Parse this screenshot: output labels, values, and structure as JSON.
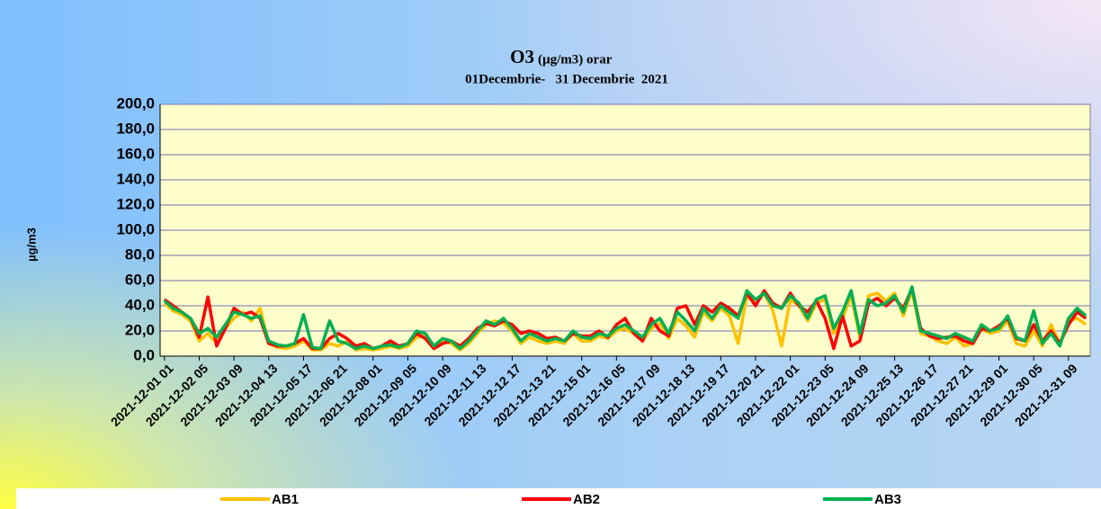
{
  "chart_data": {
    "type": "line",
    "title": "O3",
    "title_unit": "(µg/m3) orar",
    "subtitle": "01Decembrie-   31 Decembrie  2021",
    "y_label": "µg/m3",
    "ylim": [
      0,
      200
    ],
    "yticks": [
      {
        "value": 0,
        "label": "0,0"
      },
      {
        "value": 20,
        "label": "20,0"
      },
      {
        "value": 40,
        "label": "40,0"
      },
      {
        "value": 60,
        "label": "60,0"
      },
      {
        "value": 80,
        "label": "80,0"
      },
      {
        "value": 100,
        "label": "100,0"
      },
      {
        "value": 120,
        "label": "120,0"
      },
      {
        "value": 140,
        "label": "140,0"
      },
      {
        "value": 160,
        "label": "160,0"
      },
      {
        "value": 180,
        "label": "180,0"
      },
      {
        "value": 200,
        "label": "200,0"
      }
    ],
    "grid": true,
    "legend": "bottom",
    "categories": [
      "2021-12-01 01",
      null,
      null,
      null,
      "2021-12-02 05",
      null,
      null,
      null,
      "2021-12-03 09",
      null,
      null,
      null,
      "2021-12-04 13",
      null,
      null,
      null,
      "2021-12-05 17",
      null,
      null,
      null,
      "2021-12-06 21",
      null,
      null,
      null,
      "2021-12-08 01",
      null,
      null,
      null,
      "2021-12-09 05",
      null,
      null,
      null,
      "2021-12-10 09",
      null,
      null,
      null,
      "2021-12-11 13",
      null,
      null,
      null,
      "2021-12-12 17",
      null,
      null,
      null,
      "2021-12-13 21",
      null,
      null,
      null,
      "2021-12-15 01",
      null,
      null,
      null,
      "2021-12-16 05",
      null,
      null,
      null,
      "2021-12-17 09",
      null,
      null,
      null,
      "2021-12-18 13",
      null,
      null,
      null,
      "2021-12-19 17",
      null,
      null,
      null,
      "2021-12-20 21",
      null,
      null,
      null,
      "2021-12-22 01",
      null,
      null,
      null,
      "2021-12-23 05",
      null,
      null,
      null,
      "2021-12-24 09",
      null,
      null,
      null,
      "2021-12-25 13",
      null,
      null,
      null,
      "2021-12-26 17",
      null,
      null,
      null,
      "2021-12-27 21",
      null,
      null,
      null,
      "2021-12-29 01",
      null,
      null,
      null,
      "2021-12-30 05",
      null,
      null,
      null,
      "2021-12-31 09",
      null,
      null
    ],
    "series": [
      {
        "name": "AB1",
        "color": "#ffc000",
        "values": [
          42,
          36,
          33,
          28,
          12,
          18,
          10,
          22,
          30,
          35,
          28,
          38,
          10,
          7,
          6,
          8,
          12,
          5,
          5,
          10,
          8,
          12,
          5,
          6,
          5,
          6,
          8,
          6,
          8,
          15,
          16,
          6,
          12,
          10,
          5,
          10,
          18,
          25,
          28,
          26,
          20,
          10,
          15,
          12,
          10,
          12,
          10,
          18,
          12,
          12,
          16,
          14,
          20,
          22,
          18,
          12,
          22,
          26,
          14,
          30,
          24,
          15,
          35,
          28,
          38,
          32,
          10,
          48,
          42,
          50,
          36,
          8,
          45,
          40,
          28,
          42,
          45,
          18,
          30,
          48,
          15,
          48,
          50,
          44,
          50,
          32,
          52,
          18,
          16,
          12,
          10,
          15,
          8,
          10,
          22,
          18,
          20,
          28,
          10,
          8,
          20,
          8,
          25,
          10,
          28,
          30,
          25
        ]
      },
      {
        "name": "AB2",
        "color": "#ff0000",
        "values": [
          45,
          40,
          35,
          30,
          15,
          47,
          8,
          22,
          38,
          33,
          35,
          30,
          10,
          8,
          8,
          10,
          14,
          6,
          6,
          14,
          18,
          14,
          8,
          10,
          6,
          8,
          12,
          8,
          10,
          18,
          14,
          6,
          10,
          12,
          8,
          14,
          22,
          26,
          24,
          28,
          25,
          18,
          20,
          18,
          14,
          15,
          12,
          18,
          16,
          16,
          20,
          15,
          25,
          30,
          18,
          12,
          30,
          20,
          16,
          38,
          40,
          25,
          40,
          35,
          42,
          38,
          32,
          50,
          40,
          52,
          42,
          38,
          50,
          40,
          35,
          44,
          30,
          6,
          32,
          8,
          12,
          42,
          46,
          40,
          46,
          38,
          54,
          22,
          16,
          14,
          15,
          16,
          12,
          10,
          22,
          20,
          24,
          30,
          14,
          12,
          25,
          12,
          20,
          10,
          25,
          35,
          30
        ]
      },
      {
        "name": "AB3",
        "color": "#00b050",
        "values": [
          44,
          38,
          35,
          30,
          18,
          22,
          15,
          25,
          35,
          33,
          30,
          32,
          12,
          9,
          8,
          10,
          33,
          7,
          6,
          28,
          12,
          10,
          6,
          8,
          6,
          8,
          9,
          7,
          10,
          20,
          18,
          8,
          14,
          12,
          6,
          12,
          20,
          28,
          25,
          30,
          22,
          12,
          18,
          15,
          12,
          14,
          12,
          20,
          15,
          14,
          18,
          16,
          22,
          25,
          20,
          15,
          25,
          30,
          18,
          35,
          28,
          20,
          38,
          30,
          40,
          35,
          30,
          52,
          45,
          50,
          40,
          38,
          48,
          42,
          30,
          45,
          48,
          22,
          35,
          52,
          18,
          45,
          40,
          42,
          48,
          35,
          55,
          20,
          18,
          16,
          14,
          18,
          15,
          12,
          25,
          20,
          22,
          32,
          15,
          12,
          36,
          10,
          18,
          8,
          30,
          38,
          32
        ]
      }
    ]
  }
}
